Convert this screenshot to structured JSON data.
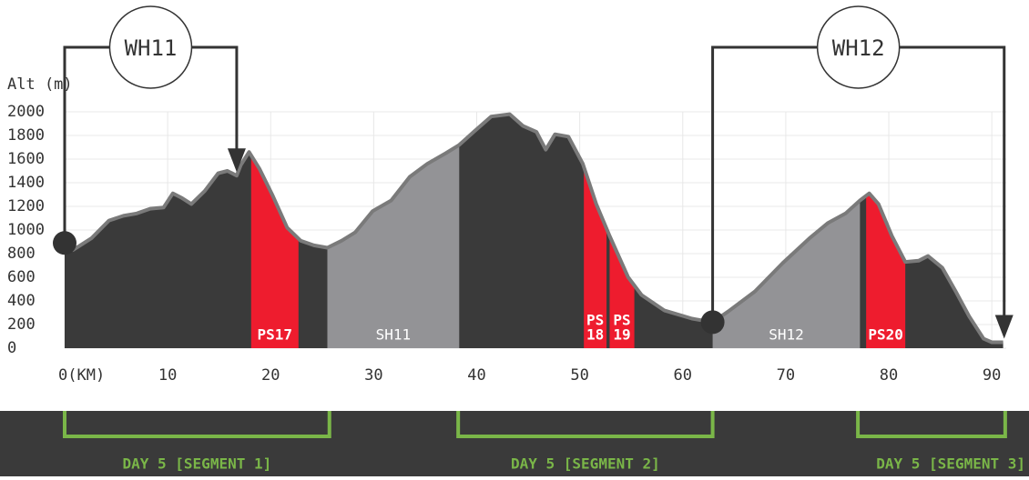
{
  "chart_data": {
    "type": "area",
    "y_label": "Alt (m)",
    "xlim": [
      0,
      91.4
    ],
    "ylim": [
      0,
      2000
    ],
    "xticks": [
      {
        "value": 0,
        "label": "0(KM)"
      },
      10,
      20,
      30,
      40,
      50,
      60,
      70,
      80,
      90
    ],
    "yticks": [
      0,
      200,
      400,
      600,
      800,
      1000,
      1200,
      1400,
      1600,
      1800,
      2000
    ],
    "grid": true,
    "color": "#3a3a3a",
    "outline_color": "#7a7a7a",
    "x": [
      0,
      0.8,
      2.6,
      4.3,
      5.7,
      7.0,
      8.3,
      9.6,
      10.5,
      11.4,
      12.3,
      13.6,
      14.9,
      15.8,
      16.7,
      17.1,
      17.9,
      18.9,
      20.2,
      21.6,
      22.9,
      24.2,
      25.5,
      26.9,
      28.2,
      29.9,
      31.7,
      33.5,
      35.2,
      37.0,
      38.3,
      39.7,
      41.4,
      43.2,
      44.5,
      45.8,
      46.7,
      47.6,
      48.9,
      50.3,
      51.6,
      52.9,
      54.7,
      56.0,
      58.2,
      60.9,
      62.9,
      64.4,
      67.0,
      69.7,
      72.3,
      74.1,
      75.8,
      77.2,
      78.1,
      79.0,
      80.3,
      81.6,
      82.9,
      83.8,
      85.2,
      86.5,
      87.8,
      89.2,
      90.0,
      91.1
    ],
    "values": [
      890,
      830,
      930,
      1080,
      1120,
      1140,
      1180,
      1190,
      1310,
      1270,
      1220,
      1330,
      1480,
      1500,
      1460,
      1550,
      1660,
      1520,
      1290,
      1020,
      910,
      870,
      850,
      910,
      980,
      1160,
      1250,
      1450,
      1560,
      1650,
      1720,
      1830,
      1960,
      1980,
      1880,
      1830,
      1680,
      1810,
      1790,
      1560,
      1220,
      950,
      600,
      450,
      320,
      250,
      220,
      310,
      480,
      720,
      930,
      1060,
      1140,
      1250,
      1310,
      1220,
      950,
      730,
      740,
      780,
      680,
      480,
      270,
      80,
      50,
      50
    ],
    "sections": [
      {
        "lines": [
          "PS17"
        ],
        "start": 18.1,
        "end": 22.7,
        "color": "#ee1c2e"
      },
      {
        "lines": [
          "SH11"
        ],
        "start": 25.5,
        "end": 38.3,
        "color": "#939396"
      },
      {
        "lines": [
          "PS",
          "18"
        ],
        "start": 50.4,
        "end": 52.6,
        "color": "#ee1c2e"
      },
      {
        "lines": [
          "PS",
          "19"
        ],
        "start": 52.9,
        "end": 55.3,
        "color": "#ee1c2e"
      },
      {
        "lines": [
          "SH12"
        ],
        "start": 62.9,
        "end": 77.2,
        "color": "#939396"
      },
      {
        "lines": [
          "PS20"
        ],
        "start": 77.8,
        "end": 81.6,
        "color": "#ee1c2e"
      }
    ],
    "waypoints": [
      {
        "label": "WH11",
        "from": 0,
        "to": 16.7
      },
      {
        "label": "WH12",
        "from": 62.9,
        "to": 91.2
      }
    ],
    "days": [
      {
        "label": "DAY 5 [SEGMENT 1]",
        "start": 0,
        "end": 25.7
      },
      {
        "label": "DAY 5 [SEGMENT 2]",
        "start": 38.2,
        "end": 62.9
      },
      {
        "label": "DAY 5 [SEGMENT 3]",
        "start": 77.0,
        "end": 91.3
      }
    ]
  }
}
